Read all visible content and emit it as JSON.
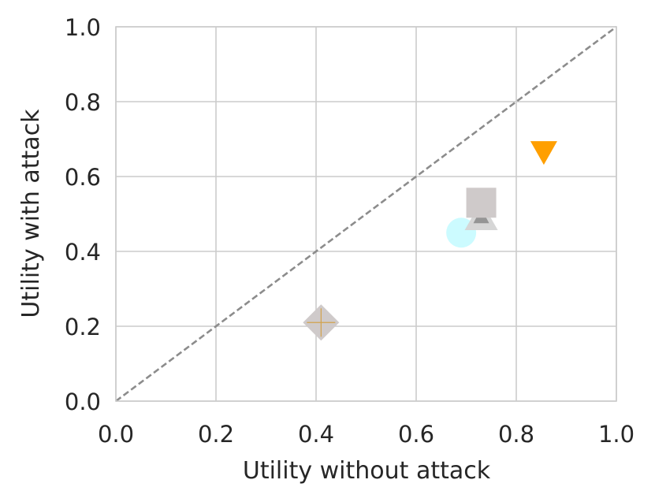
{
  "chart_data": {
    "type": "scatter",
    "title": "",
    "xlabel": "Utility without attack",
    "ylabel": "Utility with attack",
    "xlim": [
      0.0,
      1.0
    ],
    "ylim": [
      0.0,
      1.0
    ],
    "xticks": [
      "0.0",
      "0.2",
      "0.4",
      "0.6",
      "0.8",
      "1.0"
    ],
    "yticks": [
      "0.0",
      "0.2",
      "0.4",
      "0.6",
      "0.8",
      "1.0"
    ],
    "grid": true,
    "reference_line": {
      "x": [
        0.0,
        1.0
      ],
      "y": [
        0.0,
        1.0
      ],
      "style": "dashed",
      "color": "#8c8c8c"
    },
    "points": [
      {
        "x": 0.41,
        "y": 0.21,
        "marker": "diamond",
        "color": "#cfcaca",
        "overlay": "plus",
        "overlay_color": "#d2a24c"
      },
      {
        "x": 0.69,
        "y": 0.45,
        "marker": "circle",
        "color": "#ccfbff"
      },
      {
        "x": 0.73,
        "y": 0.49,
        "marker": "triangle-up",
        "color": "#d6d6d6",
        "overlay": "triangle-up",
        "overlay_color": "#8a8a8a"
      },
      {
        "x": 0.73,
        "y": 0.53,
        "marker": "square",
        "color": "#cfcaca"
      },
      {
        "x": 0.855,
        "y": 0.665,
        "marker": "triangle-down",
        "color": "#ff9f00"
      }
    ]
  }
}
